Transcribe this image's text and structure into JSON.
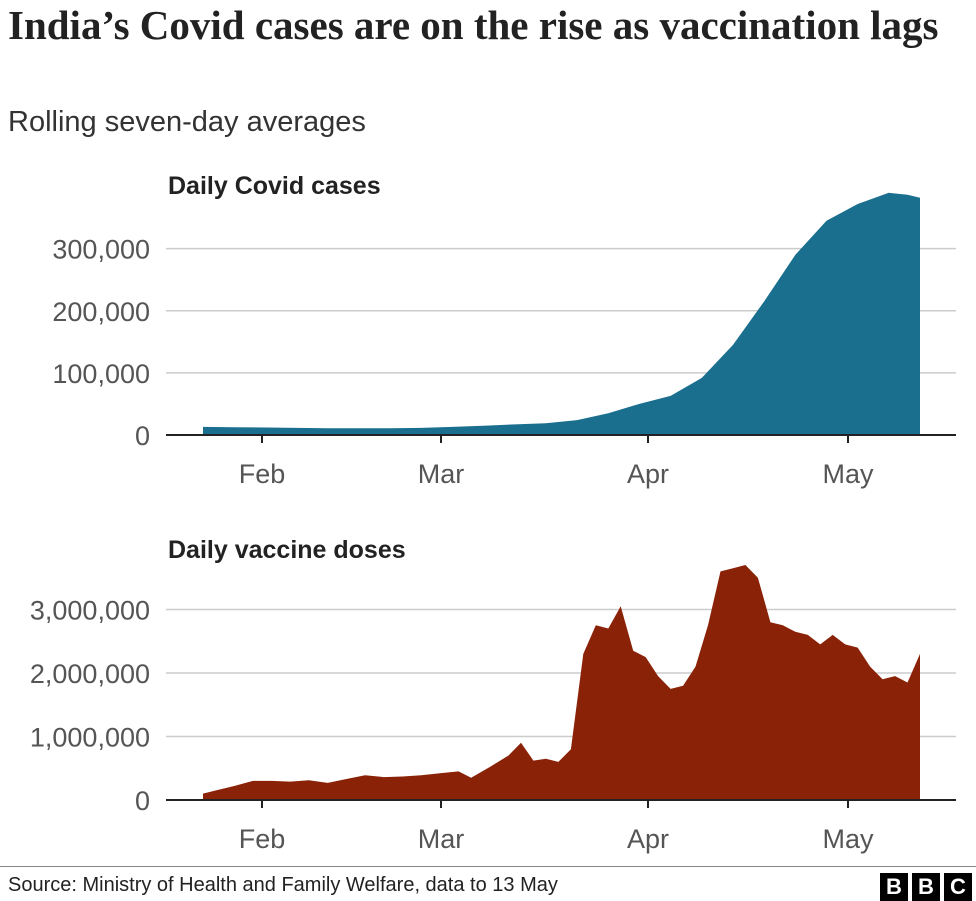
{
  "header": {
    "title": "India’s Covid cases are on the rise as vaccination lags",
    "subtitle": "Rolling seven-day averages"
  },
  "footer": {
    "source": "Source: Ministry of Health and Family Welfare, data to 13 May",
    "logo_letters": [
      "B",
      "B",
      "C"
    ]
  },
  "chart_data": [
    {
      "type": "area",
      "title": "Daily Covid cases",
      "xlabel": "",
      "ylabel": "",
      "ylim": [
        0,
        380000
      ],
      "x_tick_labels": [
        "Feb",
        "Mar",
        "Apr",
        "May"
      ],
      "y_tick_labels": [
        "0",
        "100,000",
        "200,000",
        "300,000"
      ],
      "y_ticks": [
        0,
        100000,
        200000,
        300000
      ],
      "grid": true,
      "color": "#1a6e8e",
      "x": [
        "18 Jan",
        "23 Jan",
        "28 Jan",
        "2 Feb",
        "7 Feb",
        "12 Feb",
        "17 Feb",
        "22 Feb",
        "27 Feb",
        "4 Mar",
        "9 Mar",
        "14 Mar",
        "19 Mar",
        "24 Mar",
        "29 Mar",
        "3 Apr",
        "8 Apr",
        "13 Apr",
        "18 Apr",
        "23 Apr",
        "28 Apr",
        "3 May",
        "8 May",
        "11 May",
        "13 May"
      ],
      "values": [
        13000,
        12500,
        12000,
        11500,
        11000,
        11000,
        11000,
        11500,
        13000,
        15000,
        17000,
        19000,
        24000,
        35000,
        50000,
        63000,
        92000,
        145000,
        215000,
        290000,
        345000,
        372000,
        390000,
        387000,
        382000
      ]
    },
    {
      "type": "area",
      "title": "Daily vaccine doses",
      "xlabel": "",
      "ylabel": "",
      "ylim": [
        0,
        3700000
      ],
      "x_tick_labels": [
        "Feb",
        "Mar",
        "Apr",
        "May"
      ],
      "y_tick_labels": [
        "0",
        "1,000,000",
        "2,000,000",
        "3,000,000"
      ],
      "y_ticks": [
        0,
        1000000,
        2000000,
        3000000
      ],
      "grid": true,
      "color": "#8a2208",
      "x": [
        "18 Jan",
        "20 Jan",
        "23 Jan",
        "26 Jan",
        "29 Jan",
        "1 Feb",
        "4 Feb",
        "7 Feb",
        "10 Feb",
        "13 Feb",
        "16 Feb",
        "19 Feb",
        "22 Feb",
        "25 Feb",
        "28 Feb",
        "2 Mar",
        "5 Mar",
        "8 Mar",
        "10 Mar",
        "12 Mar",
        "14 Mar",
        "16 Mar",
        "18 Mar",
        "20 Mar",
        "22 Mar",
        "24 Mar",
        "26 Mar",
        "28 Mar",
        "30 Mar",
        "1 Apr",
        "3 Apr",
        "5 Apr",
        "7 Apr",
        "9 Apr",
        "11 Apr",
        "13 Apr",
        "15 Apr",
        "17 Apr",
        "19 Apr",
        "21 Apr",
        "23 Apr",
        "25 Apr",
        "27 Apr",
        "29 Apr",
        "1 May",
        "3 May",
        "5 May",
        "7 May",
        "9 May",
        "11 May",
        "13 May"
      ],
      "values": [
        100000,
        150000,
        220000,
        300000,
        300000,
        290000,
        310000,
        270000,
        330000,
        390000,
        360000,
        370000,
        390000,
        420000,
        450000,
        350000,
        520000,
        700000,
        900000,
        620000,
        650000,
        600000,
        800000,
        2300000,
        2750000,
        2700000,
        3050000,
        2350000,
        2250000,
        1950000,
        1750000,
        1800000,
        2100000,
        2750000,
        3600000,
        3650000,
        3700000,
        3500000,
        2800000,
        2750000,
        2650000,
        2600000,
        2450000,
        2600000,
        2450000,
        2400000,
        2100000,
        1900000,
        1950000,
        1850000,
        2300000
      ]
    }
  ]
}
